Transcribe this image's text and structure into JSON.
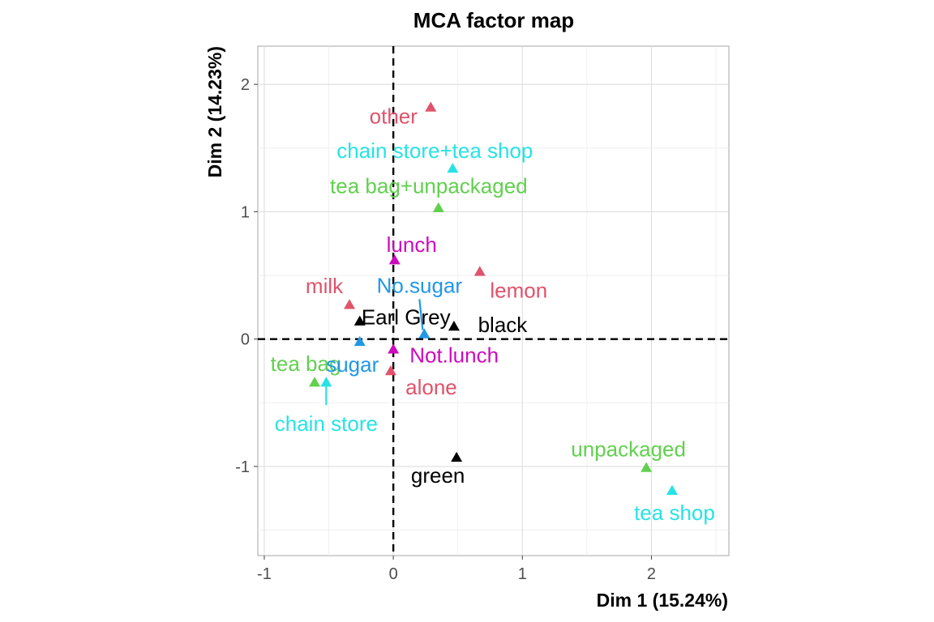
{
  "chart_data": {
    "type": "scatter",
    "title": "MCA factor map",
    "xlabel": "Dim 1 (15.24%)",
    "ylabel": "Dim 2 (14.23%)",
    "xlim": [
      -1.05,
      2.6
    ],
    "ylim": [
      -1.7,
      2.3
    ],
    "xticks": [
      -1,
      0,
      1,
      2
    ],
    "yticks": [
      -1,
      0,
      1,
      2
    ],
    "xtick_labels": [
      "-1",
      "0",
      "1",
      "2"
    ],
    "ytick_labels": [
      "-1",
      "0",
      "1",
      "2"
    ],
    "grid": true,
    "colors": {
      "Tea": "#000000",
      "How": "#DF536B",
      "how": "#61D04F",
      "sugar": "#2297E6",
      "where": "#28E2E5",
      "lunch": "#CD0BBC"
    },
    "points": [
      {
        "label": "Earl Grey",
        "group": "Tea",
        "x": -0.26,
        "y": 0.14
      },
      {
        "label": "black",
        "group": "Tea",
        "x": 0.47,
        "y": 0.1
      },
      {
        "label": "green",
        "group": "Tea",
        "x": 0.49,
        "y": -0.93
      },
      {
        "label": "alone",
        "group": "How",
        "x": -0.02,
        "y": -0.25
      },
      {
        "label": "lemon",
        "group": "How",
        "x": 0.67,
        "y": 0.53
      },
      {
        "label": "milk",
        "group": "How",
        "x": -0.34,
        "y": 0.27
      },
      {
        "label": "other",
        "group": "How",
        "x": 0.29,
        "y": 1.82
      },
      {
        "label": "tea bag",
        "group": "how",
        "x": -0.61,
        "y": -0.34
      },
      {
        "label": "tea bag+unpackaged",
        "group": "how",
        "x": 0.35,
        "y": 1.03
      },
      {
        "label": "unpackaged",
        "group": "how",
        "x": 1.96,
        "y": -1.01
      },
      {
        "label": "No.sugar",
        "group": "sugar",
        "x": 0.24,
        "y": 0.04
      },
      {
        "label": "sugar",
        "group": "sugar",
        "x": -0.26,
        "y": -0.02
      },
      {
        "label": "chain store",
        "group": "where",
        "x": -0.52,
        "y": -0.34
      },
      {
        "label": "chain store+tea shop",
        "group": "where",
        "x": 0.46,
        "y": 1.34
      },
      {
        "label": "tea shop",
        "group": "where",
        "x": 2.16,
        "y": -1.19
      },
      {
        "label": "lunch",
        "group": "lunch",
        "x": 0.01,
        "y": 0.62
      },
      {
        "label": "Not.lunch",
        "group": "lunch",
        "x": 0.0,
        "y": -0.08
      }
    ]
  }
}
